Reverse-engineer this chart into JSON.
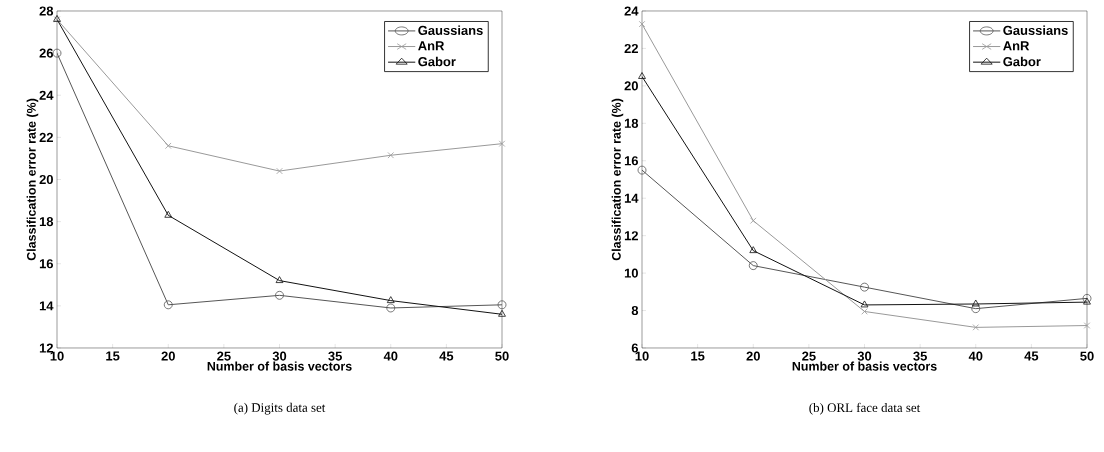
{
  "chart_data": [
    {
      "type": "line",
      "title": "(a) Digits data set",
      "xlabel": "Number of basis vectors",
      "ylabel": "Classification error rate (%)",
      "x": [
        10,
        20,
        30,
        40,
        50
      ],
      "xlim": [
        10,
        50
      ],
      "xticks": [
        10,
        15,
        20,
        25,
        30,
        35,
        40,
        45,
        50
      ],
      "ylim": [
        12,
        28
      ],
      "yticks": [
        12,
        14,
        16,
        18,
        20,
        22,
        24,
        26,
        28
      ],
      "grid": false,
      "legend": "top right",
      "line_style": "solid",
      "series": [
        {
          "name": "Gaussians",
          "color": "#555555",
          "marker": "circle",
          "values": [
            26.0,
            14.05,
            14.5,
            13.9,
            14.05
          ]
        },
        {
          "name": "AnR",
          "color": "#999999",
          "marker": "cross",
          "values": [
            27.6,
            21.6,
            20.4,
            21.15,
            21.7
          ]
        },
        {
          "name": "Gabor",
          "color": "#111111",
          "marker": "triangle",
          "values": [
            27.6,
            18.3,
            15.2,
            14.25,
            13.6
          ]
        }
      ]
    },
    {
      "type": "line",
      "title": "(b) ORL face data set",
      "xlabel": "Number of basis vectors",
      "ylabel": "Classification error rate (%)",
      "x": [
        10,
        20,
        30,
        40,
        50
      ],
      "xlim": [
        10,
        50
      ],
      "xticks": [
        10,
        15,
        20,
        25,
        30,
        35,
        40,
        45,
        50
      ],
      "ylim": [
        6,
        24
      ],
      "yticks": [
        6,
        8,
        10,
        12,
        14,
        16,
        18,
        20,
        22,
        24
      ],
      "grid": false,
      "legend": "top right",
      "line_style": "solid",
      "series": [
        {
          "name": "Gaussians",
          "color": "#555555",
          "marker": "circle",
          "values": [
            15.5,
            10.4,
            9.25,
            8.1,
            8.65
          ]
        },
        {
          "name": "AnR",
          "color": "#999999",
          "marker": "cross",
          "values": [
            23.3,
            12.8,
            7.95,
            7.1,
            7.2
          ]
        },
        {
          "name": "Gabor",
          "color": "#111111",
          "marker": "triangle",
          "values": [
            20.5,
            11.2,
            8.3,
            8.35,
            8.45
          ]
        }
      ]
    }
  ]
}
